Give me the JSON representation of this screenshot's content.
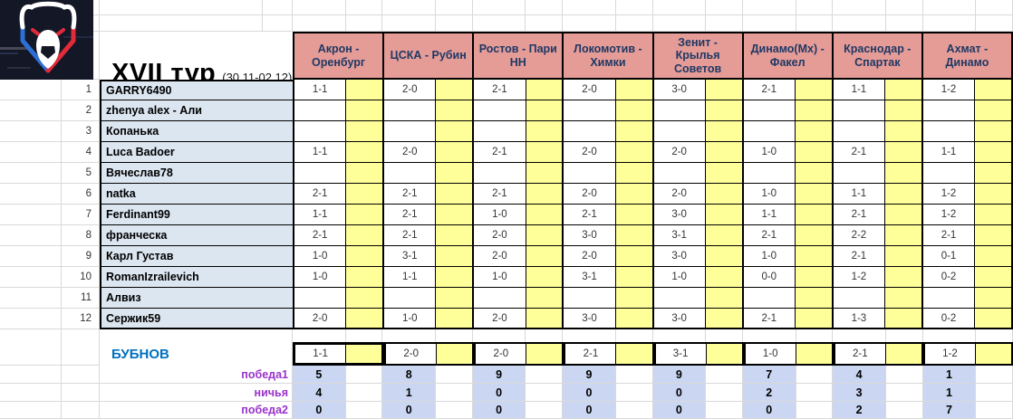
{
  "title": {
    "text": "XVII тур",
    "dates": "(30.11-02.12)"
  },
  "logo": {
    "name": "russian-premier-league-bear-logo"
  },
  "matches": [
    "Акрон - Оренбург",
    "ЦСКА - Рубин",
    "Ростов - Пари НН",
    "Локомотив - Химки",
    "Зенит - Крылья Советов",
    "Динамо(Мх) - Факел",
    "Краснодар - Спартак",
    "Ахмат - Динамо"
  ],
  "players": [
    {
      "num": "1",
      "name": "GARRY6490",
      "predictions": [
        "1-1",
        "2-0",
        "2-1",
        "2-0",
        "3-0",
        "2-1",
        "1-1",
        "1-2"
      ]
    },
    {
      "num": "2",
      "name": "zhenya alex - Али",
      "predictions": [
        "",
        "",
        "",
        "",
        "",
        "",
        "",
        ""
      ]
    },
    {
      "num": "3",
      "name": "Копанька",
      "predictions": [
        "",
        "",
        "",
        "",
        "",
        "",
        "",
        ""
      ]
    },
    {
      "num": "4",
      "name": "Luca Badoer",
      "predictions": [
        "1-1",
        "2-0",
        "2-1",
        "2-0",
        "2-0",
        "1-0",
        "2-1",
        "1-1"
      ]
    },
    {
      "num": "5",
      "name": "Вячеслав78",
      "predictions": [
        "",
        "",
        "",
        "",
        "",
        "",
        "",
        ""
      ]
    },
    {
      "num": "6",
      "name": "natka",
      "predictions": [
        "2-1",
        "2-1",
        "2-1",
        "2-0",
        "2-0",
        "1-0",
        "1-1",
        "1-2"
      ]
    },
    {
      "num": "7",
      "name": "Ferdinant99",
      "predictions": [
        "1-1",
        "2-1",
        "1-0",
        "2-1",
        "3-0",
        "1-1",
        "2-1",
        "1-2"
      ]
    },
    {
      "num": "8",
      "name": "франческа",
      "predictions": [
        "2-1",
        "2-1",
        "2-0",
        "3-0",
        "3-1",
        "2-1",
        "2-2",
        "2-1"
      ]
    },
    {
      "num": "9",
      "name": "Карл Густав",
      "predictions": [
        "1-0",
        "3-1",
        "2-0",
        "2-0",
        "3-0",
        "1-0",
        "2-1",
        "0-1"
      ]
    },
    {
      "num": "10",
      "name": "RomanIzrailevich",
      "predictions": [
        "1-0",
        "1-1",
        "1-0",
        "3-1",
        "1-0",
        "0-0",
        "1-2",
        "0-2"
      ]
    },
    {
      "num": "11",
      "name": "Алвиз",
      "predictions": [
        "",
        "",
        "",
        "",
        "",
        "",
        "",
        ""
      ]
    },
    {
      "num": "12",
      "name": "Сержик59",
      "predictions": [
        "2-0",
        "1-0",
        "2-0",
        "3-0",
        "3-0",
        "2-1",
        "1-3",
        "0-2"
      ]
    }
  ],
  "bubnov": {
    "name": "БУБНОВ",
    "predictions": [
      "1-1",
      "2-0",
      "2-0",
      "2-1",
      "3-1",
      "1-0",
      "2-1",
      "1-2"
    ]
  },
  "stats": [
    {
      "label": "победа1",
      "values": [
        "5",
        "8",
        "9",
        "9",
        "9",
        "7",
        "4",
        "1"
      ]
    },
    {
      "label": "ничья",
      "values": [
        "4",
        "1",
        "0",
        "0",
        "0",
        "2",
        "3",
        "1"
      ]
    },
    {
      "label": "победа2",
      "values": [
        "0",
        "0",
        "0",
        "0",
        "0",
        "0",
        "2",
        "7"
      ]
    }
  ],
  "colors": {
    "header-fill": "#E59C97",
    "header-text": "#1F3864",
    "points-fill": "#FFFF99",
    "names-fill": "#DCE6F1",
    "stats-fill": "#CBD7F2",
    "labels-purple": "#9933CC",
    "bubnov-blue": "#0070C0",
    "grid-line": "#D9D9D9",
    "logo-bg": "#131726",
    "logo-red": "#E22A38",
    "logo-blue": "#2E6FD6"
  }
}
